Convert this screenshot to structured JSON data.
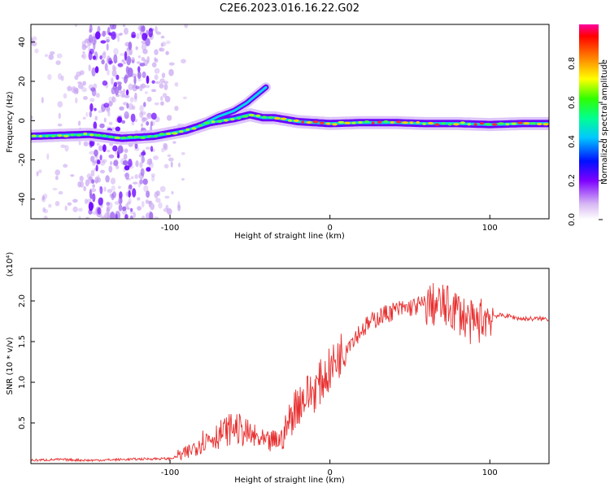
{
  "title": "C2E6.2023.016.16.22.G02",
  "chart_data": [
    {
      "type": "heatmap",
      "xlabel": "Height of straight line (km)",
      "ylabel": "Frequency (Hz)",
      "xlim": [
        -187,
        137
      ],
      "ylim": [
        -50,
        49
      ],
      "xticks": [
        "-100",
        "0",
        "100"
      ],
      "xtick_values": [
        -100,
        0,
        100
      ],
      "yticks": [
        "40",
        "20",
        "0",
        "-20",
        "-40"
      ],
      "ytick_values": [
        40,
        20,
        0,
        -20,
        -40
      ],
      "colorbar": {
        "label": "Normalized spectral amplitude",
        "range": [
          0,
          1
        ],
        "ticks": [
          "0.0",
          "0.2",
          "0.4",
          "0.6",
          "0.8"
        ],
        "tick_values": [
          0.0,
          0.2,
          0.4,
          0.6,
          0.8
        ]
      },
      "ridge": {
        "x": [
          -187,
          -170,
          -150,
          -130,
          -110,
          -90,
          -75,
          -60,
          -50,
          -42,
          -35,
          -20,
          0,
          20,
          40,
          60,
          80,
          100,
          120,
          137
        ],
        "y": [
          -8,
          -7.5,
          -7,
          -9,
          -8,
          -5,
          -1,
          1,
          3,
          1.5,
          1.5,
          -0.5,
          -1.5,
          -1,
          -1,
          -1.5,
          -1.5,
          -2,
          -1.5,
          -1.5
        ]
      },
      "upper_branch": {
        "x": [
          -80,
          -70,
          -60,
          -52,
          -46,
          -40
        ],
        "y": [
          -2,
          2,
          5,
          9,
          13,
          17
        ]
      },
      "scatter_zone": [
        -160,
        -100
      ]
    },
    {
      "type": "line",
      "xlabel": "Height of straight line (km)",
      "ylabel": "SNR (10 * v/v)",
      "yscale_note": "(x10⁴)",
      "xlim": [
        -187,
        137
      ],
      "ylim": [
        0,
        2.4
      ],
      "xticks": [
        "-100",
        "0",
        "100"
      ],
      "xtick_values": [
        -100,
        0,
        100
      ],
      "yticks": [
        "0.5",
        "1.0",
        "1.5",
        "2.0"
      ],
      "ytick_values": [
        0.5,
        1.0,
        1.5,
        2.0
      ],
      "series": [
        {
          "color": "#e83030",
          "x": [
            -187,
            -170,
            -150,
            -130,
            -110,
            -100,
            -90,
            -80,
            -70,
            -60,
            -50,
            -40,
            -30,
            -25,
            -20,
            -10,
            0,
            10,
            20,
            30,
            40,
            50,
            60,
            70,
            80,
            85,
            90,
            95,
            100,
            110,
            120,
            137
          ],
          "y": [
            0.04,
            0.05,
            0.04,
            0.05,
            0.06,
            0.06,
            0.12,
            0.28,
            0.35,
            0.45,
            0.35,
            0.25,
            0.3,
            0.55,
            0.75,
            0.9,
            1.15,
            1.45,
            1.65,
            1.8,
            1.88,
            1.92,
            1.96,
            1.94,
            1.88,
            1.78,
            1.7,
            1.78,
            1.82,
            1.82,
            1.78,
            1.78
          ]
        }
      ]
    }
  ]
}
